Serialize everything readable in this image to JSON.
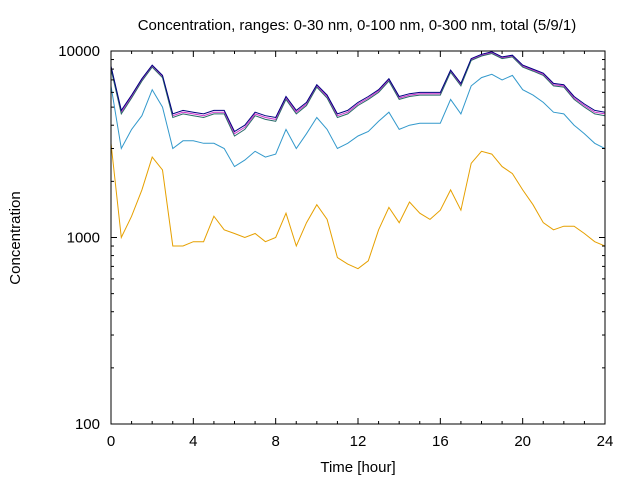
{
  "chart_data": {
    "type": "line",
    "title": "Concentration, ranges: 0-30 nm, 0-100 nm, 0-300 nm, total (5/9/1)",
    "xlabel": "Time [hour]",
    "ylabel": "Concentration",
    "xlim": [
      0,
      24
    ],
    "ylim": [
      100,
      10000
    ],
    "yscale": "log",
    "grid": false,
    "x_ticks": [
      0,
      4,
      8,
      12,
      16,
      20,
      24
    ],
    "x_tick_labels": [
      "0",
      "4",
      "8",
      "12",
      "16",
      "20",
      "24"
    ],
    "y_ticks": [
      100,
      1000,
      10000
    ],
    "y_tick_labels": [
      "100",
      "1000",
      "10000"
    ],
    "x": [
      0,
      0.5,
      1,
      1.5,
      2,
      2.5,
      3,
      3.5,
      4,
      4.5,
      5,
      5.5,
      6,
      6.5,
      7,
      7.5,
      8,
      8.5,
      9,
      9.5,
      10,
      10.5,
      11,
      11.5,
      12,
      12.5,
      13,
      13.5,
      14,
      14.5,
      15,
      15.5,
      16,
      16.5,
      17,
      17.5,
      18,
      18.5,
      19,
      19.5,
      20,
      20.5,
      21,
      21.5,
      22,
      22.5,
      23,
      23.5,
      24
    ],
    "series": [
      {
        "color": "#e6a000",
        "values": [
          3200,
          1000,
          1300,
          1800,
          2700,
          2300,
          900,
          900,
          950,
          950,
          1300,
          1100,
          1050,
          1000,
          1050,
          950,
          1000,
          1350,
          900,
          1200,
          1500,
          1250,
          780,
          720,
          680,
          750,
          1100,
          1450,
          1200,
          1550,
          1350,
          1250,
          1400,
          1800,
          1400,
          2500,
          2900,
          2800,
          2400,
          2200,
          1800,
          1500,
          1200,
          1100,
          1150,
          1150,
          1050,
          950,
          900
        ]
      },
      {
        "color": "#3399cc",
        "values": [
          6500,
          3000,
          3800,
          4500,
          6200,
          5000,
          3000,
          3300,
          3300,
          3200,
          3200,
          3000,
          2400,
          2600,
          2900,
          2700,
          2800,
          3800,
          3000,
          3600,
          4400,
          3800,
          3000,
          3200,
          3500,
          3700,
          4200,
          4700,
          3800,
          4000,
          4100,
          4100,
          4100,
          5500,
          4600,
          6500,
          7200,
          7500,
          7000,
          7400,
          6200,
          5800,
          5300,
          4700,
          4600,
          4000,
          3600,
          3200,
          3000
        ]
      },
      {
        "color": "#cc33cc",
        "values": [
          8200,
          4700,
          5700,
          7000,
          8300,
          7300,
          4500,
          4700,
          4600,
          4500,
          4700,
          4700,
          3600,
          3900,
          4600,
          4400,
          4300,
          5600,
          4700,
          5200,
          6500,
          5700,
          4500,
          4700,
          5200,
          5600,
          6100,
          7000,
          5600,
          5800,
          5900,
          5900,
          5900,
          7800,
          6600,
          9000,
          9500,
          9800,
          9200,
          9400,
          8300,
          7900,
          7500,
          6600,
          6500,
          5600,
          5100,
          4700,
          4600
        ]
      },
      {
        "color": "#2a6a6a",
        "values": [
          8000,
          4600,
          5600,
          6900,
          8200,
          7200,
          4400,
          4600,
          4500,
          4400,
          4600,
          4600,
          3500,
          3800,
          4500,
          4300,
          4200,
          5500,
          4600,
          5100,
          6400,
          5600,
          4400,
          4600,
          5100,
          5500,
          6000,
          6900,
          5500,
          5700,
          5800,
          5800,
          5800,
          7700,
          6500,
          8900,
          9400,
          9700,
          9100,
          9300,
          8200,
          7800,
          7400,
          6500,
          6400,
          5500,
          5000,
          4600,
          4500
        ]
      },
      {
        "color": "#000080",
        "values": [
          8300,
          4800,
          5800,
          7100,
          8400,
          7400,
          4600,
          4800,
          4700,
          4600,
          4800,
          4800,
          3700,
          4000,
          4700,
          4500,
          4400,
          5700,
          4800,
          5300,
          6600,
          5800,
          4600,
          4800,
          5300,
          5700,
          6200,
          7100,
          5700,
          5900,
          6000,
          6000,
          6000,
          7900,
          6700,
          9100,
          9600,
          9900,
          9300,
          9500,
          8400,
          8000,
          7600,
          6700,
          6600,
          5700,
          5200,
          4800,
          4700
        ]
      }
    ]
  }
}
